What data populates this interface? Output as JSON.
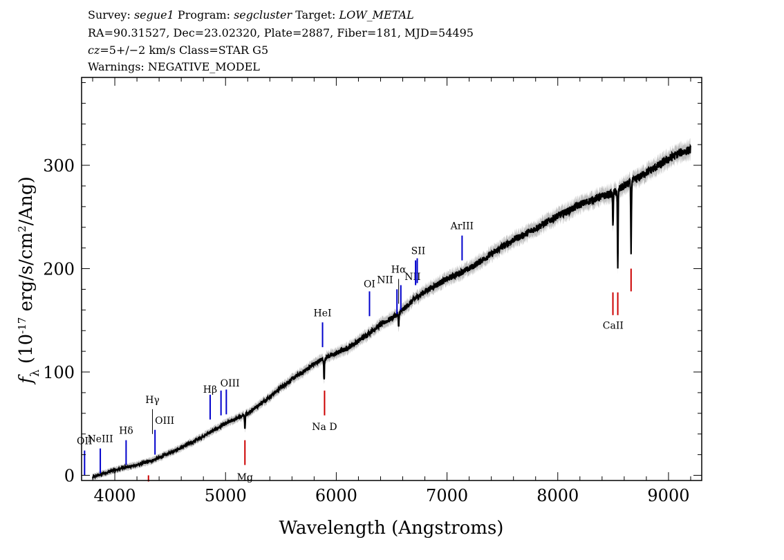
{
  "header": {
    "survey_label": "Survey:",
    "survey": "segue1",
    "program_label": "Program:",
    "program": "segcluster",
    "target_label": "Target:",
    "target": "LOW_METAL",
    "coords": "RA=90.31527, Dec=23.02320, Plate=2887, Fiber=181, MJD=54495",
    "cz": "cz",
    "class_line": "=5+/−2 km/s Class=STAR G5",
    "warnings": "Warnings: NEGATIVE_MODEL"
  },
  "chart_data": {
    "type": "line",
    "xlabel": "Wavelength (Angstroms)",
    "ylabel": "f_λ (10^-17 erg/s/cm^2/Ang)",
    "xlim": [
      3700,
      9300
    ],
    "ylim": [
      -5,
      385
    ],
    "xticks": [
      4000,
      5000,
      6000,
      7000,
      8000,
      9000
    ],
    "yticks": [
      0,
      100,
      200,
      300
    ],
    "series": [
      {
        "color": "#000000",
        "x": [
          3800,
          3900,
          4000,
          4100,
          4200,
          4300,
          4400,
          4500,
          4600,
          4700,
          4800,
          4900,
          5000,
          5100,
          5200,
          5300,
          5400,
          5500,
          5600,
          5700,
          5800,
          5900,
          6000,
          6100,
          6200,
          6300,
          6400,
          6500,
          6600,
          6700,
          6800,
          6900,
          7000,
          7100,
          7200,
          7300,
          7400,
          7500,
          7600,
          7700,
          7800,
          7900,
          8000,
          8100,
          8200,
          8300,
          8400,
          8500,
          8600,
          8700,
          8800,
          8900,
          9000,
          9100,
          9200
        ],
        "y": [
          -2,
          2,
          5,
          8,
          10,
          13,
          17,
          22,
          27,
          32,
          38,
          44,
          50,
          55,
          60,
          68,
          76,
          85,
          93,
          100,
          108,
          114,
          118,
          123,
          130,
          138,
          146,
          152,
          160,
          170,
          178,
          184,
          190,
          195,
          200,
          207,
          214,
          221,
          228,
          233,
          239,
          245,
          251,
          256,
          262,
          266,
          270,
          273,
          280,
          286,
          293,
          299,
          306,
          312,
          315
        ]
      }
    ],
    "absorption_dips": [
      {
        "x": 5175,
        "depth": 15
      },
      {
        "x": 5890,
        "depth": 22
      },
      {
        "x": 6563,
        "depth": 15
      },
      {
        "x": 8498,
        "depth": 30
      },
      {
        "x": 8542,
        "depth": 78
      },
      {
        "x": 8662,
        "depth": 66
      }
    ],
    "emission_lines": [
      {
        "label": "OII",
        "x": 3727,
        "y0": 0,
        "y1": 24,
        "lx": 3727,
        "ly": 30,
        "color": "#0000cc"
      },
      {
        "label": "NeIII",
        "x": 3869,
        "y0": 2,
        "y1": 26,
        "lx": 3869,
        "ly": 32,
        "color": "#0000cc"
      },
      {
        "label": "Hδ",
        "x": 4102,
        "y0": 10,
        "y1": 34,
        "lx": 4102,
        "ly": 40,
        "color": "#0000cc"
      },
      {
        "label": "Hγ",
        "x": 4340,
        "y0": 40,
        "y1": 64,
        "lx": 4340,
        "ly": 70,
        "color": "#000000"
      },
      {
        "label": "OIII",
        "x": 4363,
        "y0": 20,
        "y1": 44,
        "lx": 4450,
        "ly": 50,
        "color": "#0000cc"
      },
      {
        "label": "Hβ",
        "x": 4861,
        "y0": 54,
        "y1": 78,
        "lx": 4861,
        "ly": 80,
        "color": "#0000cc"
      },
      {
        "label": "OIII",
        "x": 4959,
        "y0": 58,
        "y1": 82,
        "lx": 5040,
        "ly": 86,
        "color": "#0000cc"
      },
      {
        "label": "",
        "x": 5007,
        "y0": 59,
        "y1": 83,
        "lx": 5007,
        "ly": 83,
        "color": "#0000cc"
      },
      {
        "label": "HeI",
        "x": 5876,
        "y0": 124,
        "y1": 148,
        "lx": 5876,
        "ly": 154,
        "color": "#0000cc"
      },
      {
        "label": "OI",
        "x": 6300,
        "y0": 154,
        "y1": 178,
        "lx": 6300,
        "ly": 182,
        "color": "#0000cc"
      },
      {
        "label": "NII",
        "x": 6548,
        "y0": 156,
        "y1": 180,
        "lx": 6440,
        "ly": 186,
        "color": "#0000cc"
      },
      {
        "label": "Hα",
        "x": 6563,
        "y0": 166,
        "y1": 190,
        "lx": 6563,
        "ly": 196,
        "color": "#000000"
      },
      {
        "label": "NII",
        "x": 6583,
        "y0": 160,
        "y1": 184,
        "lx": 6690,
        "ly": 189,
        "color": "#0000cc"
      },
      {
        "label": "SII",
        "x": 6716,
        "y0": 184,
        "y1": 208,
        "lx": 6740,
        "ly": 214,
        "color": "#0000cc"
      },
      {
        "label": "",
        "x": 6731,
        "y0": 186,
        "y1": 210,
        "lx": 6731,
        "ly": 210,
        "color": "#0000cc"
      },
      {
        "label": "ArIII",
        "x": 7136,
        "y0": 208,
        "y1": 232,
        "lx": 7136,
        "ly": 238,
        "color": "#0000cc"
      }
    ],
    "absorption_lines": [
      {
        "label": "",
        "x": 4304,
        "y0": -6,
        "y1": 0,
        "lx": 4304,
        "ly": -6,
        "color": "#cc0000"
      },
      {
        "label": "Mg",
        "x": 5175,
        "y0": 10,
        "y1": 34,
        "lx": 5175,
        "ly": -5,
        "color": "#cc0000"
      },
      {
        "label": "Na D",
        "x": 5894,
        "y0": 58,
        "y1": 82,
        "lx": 5894,
        "ly": 44,
        "color": "#cc0000"
      },
      {
        "label": "CaII",
        "x": 8498,
        "y0": 155,
        "y1": 177,
        "lx": 8500,
        "ly": 142,
        "color": "#cc0000"
      },
      {
        "label": "",
        "x": 8542,
        "y0": 155,
        "y1": 177,
        "lx": 8542,
        "ly": 177,
        "color": "#cc0000"
      },
      {
        "label": "",
        "x": 8662,
        "y0": 178,
        "y1": 200,
        "lx": 8662,
        "ly": 200,
        "color": "#cc0000"
      }
    ]
  }
}
